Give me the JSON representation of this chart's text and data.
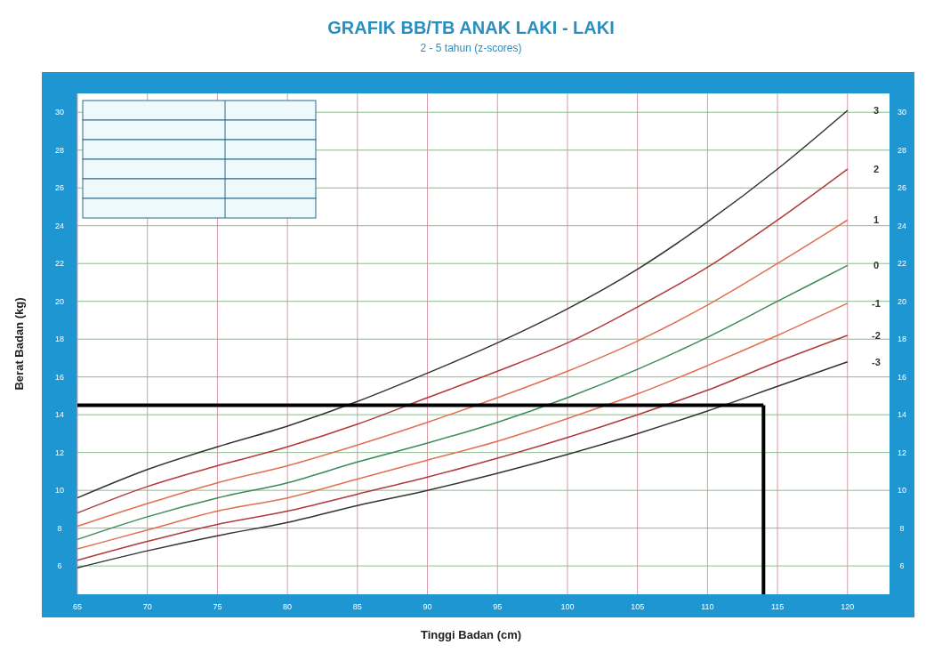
{
  "chart_data": {
    "type": "line",
    "title": "GRAFIK BB/TB ANAK LAKI - LAKI",
    "subtitle": "2 - 5 tahun (z-scores)",
    "xlabel": "Tinggi Badan (cm)",
    "ylabel": "Berat Badan (kg)",
    "x": [
      65,
      70,
      75,
      80,
      85,
      90,
      95,
      100,
      105,
      110,
      115,
      120
    ],
    "series": [
      {
        "name": "3",
        "color": "#333333",
        "values": [
          9.6,
          11.1,
          12.3,
          13.4,
          14.7,
          16.2,
          17.8,
          19.6,
          21.7,
          24.2,
          27.0,
          30.1
        ]
      },
      {
        "name": "2",
        "color": "#b03a3a",
        "values": [
          8.8,
          10.2,
          11.3,
          12.3,
          13.5,
          14.9,
          16.3,
          17.8,
          19.7,
          21.8,
          24.3,
          27.0
        ]
      },
      {
        "name": "1",
        "color": "#e07050",
        "values": [
          8.1,
          9.3,
          10.4,
          11.3,
          12.4,
          13.6,
          14.9,
          16.3,
          17.9,
          19.8,
          22.0,
          24.3
        ]
      },
      {
        "name": "0",
        "color": "#3a8a5a",
        "values": [
          7.4,
          8.6,
          9.6,
          10.4,
          11.5,
          12.5,
          13.6,
          14.9,
          16.4,
          18.1,
          20.0,
          21.9
        ]
      },
      {
        "name": "-1",
        "color": "#e07050",
        "values": [
          6.9,
          7.9,
          8.9,
          9.6,
          10.6,
          11.6,
          12.6,
          13.8,
          15.1,
          16.6,
          18.2,
          19.9
        ]
      },
      {
        "name": "-2",
        "color": "#b03a3a",
        "values": [
          6.3,
          7.3,
          8.2,
          8.9,
          9.8,
          10.7,
          11.7,
          12.8,
          14.0,
          15.3,
          16.8,
          18.2
        ]
      },
      {
        "name": "-3",
        "color": "#333333",
        "values": [
          5.9,
          6.8,
          7.6,
          8.3,
          9.2,
          10.0,
          10.9,
          11.9,
          13.0,
          14.2,
          15.5,
          16.8
        ]
      }
    ],
    "ref_lines": [
      {
        "axis": "y",
        "value": 14.5,
        "color": "#000000"
      },
      {
        "axis": "x",
        "value": 114,
        "color": "#000000"
      }
    ],
    "xlim": [
      65,
      123
    ],
    "xticks": [
      65,
      70,
      75,
      80,
      85,
      90,
      95,
      100,
      105,
      110,
      115,
      120
    ],
    "ylim": [
      4.5,
      31
    ],
    "yticks": [
      6,
      8,
      10,
      12,
      14,
      16,
      18,
      20,
      22,
      24,
      26,
      28,
      30
    ],
    "y2lim": [
      4.5,
      31
    ],
    "y2ticks": [
      6,
      8,
      10,
      12,
      14,
      16,
      18,
      20,
      22,
      24,
      26,
      28,
      30
    ],
    "grid": true
  }
}
